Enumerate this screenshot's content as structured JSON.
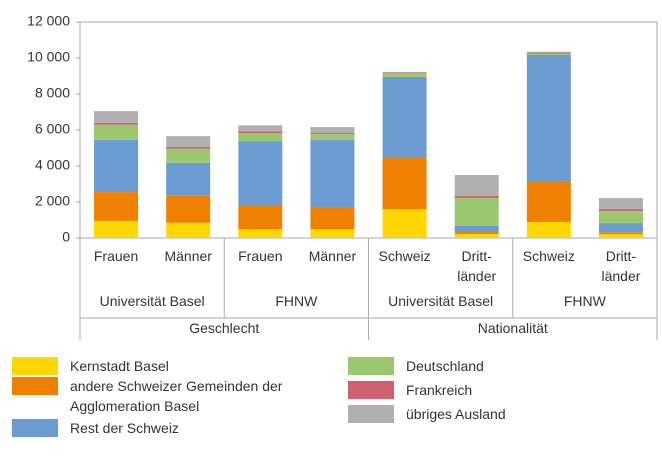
{
  "chart_data": {
    "type": "stacked_bar",
    "categories": [
      "Frauen",
      "Männer",
      "Frauen",
      "Männer",
      "Schweiz",
      "Dritt-\nländer",
      "Schweiz",
      "Dritt-\nländer"
    ],
    "category_groups": [
      "Universität Basel",
      "FHNW",
      "Universität Basel",
      "FHNW"
    ],
    "category_supergroups": [
      "Geschlecht",
      "Nationalität"
    ],
    "ylim": [
      0,
      12000
    ],
    "yticks": [
      0,
      {
        "value": 2000,
        "label": "2 000"
      },
      {
        "value": 4000,
        "label": "4 000"
      },
      {
        "value": 6000,
        "label": "6 000"
      },
      {
        "value": 8000,
        "label": "8 000"
      },
      {
        "value": 10000,
        "label": "10 000"
      },
      {
        "value": 12000,
        "label": "12 000"
      }
    ],
    "grid": false,
    "series": [
      {
        "name": "Kernstadt Basel",
        "color": "#ffd600",
        "values": [
          950,
          850,
          500,
          500,
          1600,
          220,
          890,
          220
        ]
      },
      {
        "name": "andere Schweizer Gemeinden der Agglomeration Basel",
        "color": "#f08000",
        "values": [
          1600,
          1500,
          1280,
          1220,
          2900,
          170,
          2280,
          100
        ]
      },
      {
        "name": "Rest der Schweiz",
        "color": "#6a9bd1",
        "values": [
          2900,
          1830,
          3600,
          3720,
          4450,
          280,
          7000,
          510
        ]
      },
      {
        "name": "Deutschland",
        "color": "#9bc86c",
        "values": [
          850,
          780,
          450,
          330,
          220,
          1550,
          80,
          670
        ]
      },
      {
        "name": "Frankreich",
        "color": "#d06070",
        "values": [
          100,
          100,
          100,
          60,
          30,
          110,
          50,
          110
        ]
      },
      {
        "name": "übriges Ausland",
        "color": "#b0b0b0",
        "values": [
          650,
          600,
          330,
          330,
          20,
          1170,
          50,
          610
        ]
      }
    ]
  }
}
